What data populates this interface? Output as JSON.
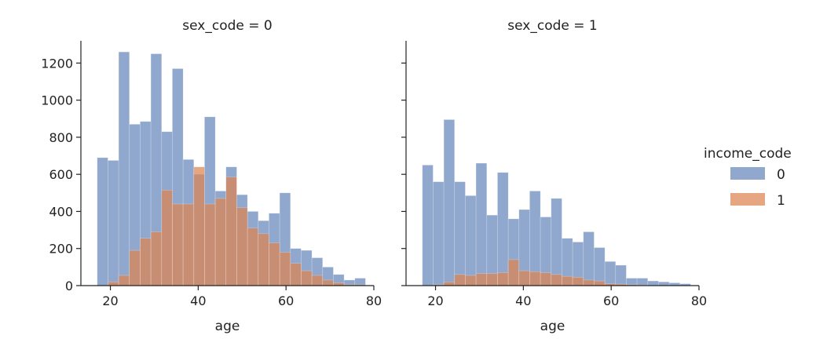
{
  "chart_data": {
    "type": "bar",
    "kind": "faceted-overlapping-histogram",
    "xlabel": "age",
    "ylabel": "",
    "xlim": [
      14,
      80
    ],
    "ylim": [
      0,
      1320
    ],
    "x_ticks": [
      20,
      40,
      60,
      80
    ],
    "y_ticks": [
      0,
      200,
      400,
      600,
      800,
      1000,
      1200
    ],
    "bin_edges": [
      17.0,
      19.44,
      21.89,
      24.33,
      26.78,
      29.22,
      31.67,
      34.11,
      36.56,
      39.0,
      41.44,
      43.89,
      46.33,
      48.78,
      51.22,
      53.67,
      56.11,
      58.56,
      61.0,
      63.44,
      65.89,
      68.33,
      70.78,
      73.22,
      75.67,
      78.1
    ],
    "legend": {
      "title": "income_code",
      "placement": "right",
      "entries": [
        {
          "label": "0",
          "color": "#4c72b0"
        },
        {
          "label": "1",
          "color": "#dd8452"
        }
      ]
    },
    "facets": [
      {
        "title": "sex_code = 0",
        "series": [
          {
            "name": "0",
            "values": [
              690,
              675,
              1260,
              870,
              885,
              1250,
              830,
              1170,
              680,
              600,
              910,
              510,
              640,
              490,
              400,
              350,
              390,
              500,
              200,
              190,
              150,
              100,
              60,
              30,
              40
            ]
          },
          {
            "name": "1",
            "values": [
              0,
              20,
              55,
              190,
              255,
              290,
              515,
              440,
              440,
              640,
              440,
              470,
              585,
              420,
              310,
              280,
              230,
              180,
              120,
              80,
              55,
              30,
              15,
              5,
              5
            ]
          }
        ]
      },
      {
        "title": "sex_code = 1",
        "series": [
          {
            "name": "0",
            "values": [
              650,
              560,
              895,
              560,
              485,
              660,
              380,
              610,
              360,
              410,
              510,
              370,
              470,
              255,
              235,
              290,
              205,
              130,
              110,
              40,
              40,
              25,
              20,
              15,
              10
            ]
          },
          {
            "name": "1",
            "values": [
              0,
              5,
              20,
              60,
              55,
              65,
              65,
              70,
              140,
              80,
              75,
              70,
              60,
              50,
              45,
              30,
              25,
              10,
              8,
              5,
              3,
              2,
              1,
              0,
              0
            ]
          }
        ]
      }
    ]
  }
}
